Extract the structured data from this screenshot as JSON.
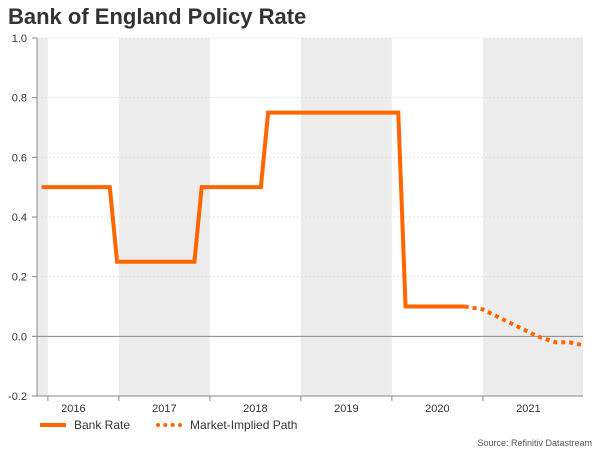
{
  "chart_data": {
    "type": "line",
    "title": "Bank of England Policy Rate",
    "xlabel": "",
    "ylabel": "",
    "ylim": [
      -0.2,
      1.0
    ],
    "xlim": [
      2015.6,
      2021.6
    ],
    "yticks": [
      "-0.2",
      "0.0",
      "0.2",
      "0.4",
      "0.6",
      "0.8",
      "1.0"
    ],
    "ytick_values": [
      -0.2,
      0.0,
      0.2,
      0.4,
      0.6,
      0.8,
      1.0
    ],
    "xtick_labels": [
      "2016",
      "2017",
      "2018",
      "2019",
      "2020",
      "2021"
    ],
    "year_bands": [
      [
        2015.6,
        2015.72
      ],
      [
        2016.5,
        2017.5
      ],
      [
        2018.5,
        2019.5
      ],
      [
        2020.5,
        2021.6
      ]
    ],
    "series": [
      {
        "name": "Bank Rate",
        "style": "solid",
        "color": "#ff6600",
        "x": [
          2015.65,
          2016.4,
          2016.48,
          2017.33,
          2017.41,
          2018.06,
          2018.14,
          2019.57,
          2019.65,
          2020.3
        ],
        "values": [
          0.5,
          0.5,
          0.25,
          0.25,
          0.5,
          0.5,
          0.75,
          0.75,
          0.1,
          0.1
        ]
      },
      {
        "name": "Market-Implied Path",
        "style": "dotted",
        "color": "#ff6600",
        "x": [
          2020.3,
          2020.5,
          2020.7,
          2020.9,
          2021.1,
          2021.3,
          2021.45,
          2021.6
        ],
        "values": [
          0.1,
          0.09,
          0.06,
          0.03,
          0.0,
          -0.02,
          -0.02,
          -0.03
        ]
      }
    ],
    "legend": [
      "Bank Rate",
      "Market-Implied Path"
    ],
    "source": "Source: Refinitiv Datastream"
  }
}
